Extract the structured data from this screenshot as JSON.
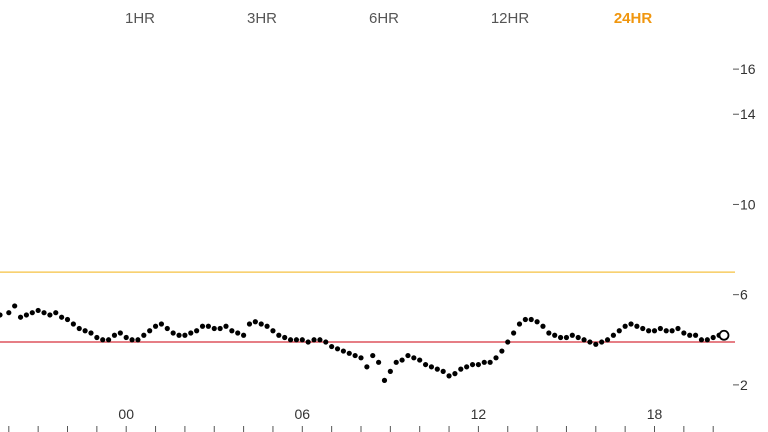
{
  "range_tabs": [
    {
      "label": "1HR",
      "active": false
    },
    {
      "label": "3HR",
      "active": false
    },
    {
      "label": "6HR",
      "active": false
    },
    {
      "label": "12HR",
      "active": false
    },
    {
      "label": "24HR",
      "active": true
    }
  ],
  "colors": {
    "active_tab": "#f0960e",
    "upper_threshold": "#f5c242",
    "lower_threshold": "#d8323c",
    "points": "#000000"
  },
  "chart_data": {
    "type": "scatter",
    "title": "",
    "xlabel": "",
    "ylabel": "",
    "x_unit": "hour",
    "xlim": [
      -4.3,
      20.3
    ],
    "ylim": [
      0,
      18
    ],
    "x_ticks": [
      {
        "value": 0,
        "label": "00"
      },
      {
        "value": 6,
        "label": "06"
      },
      {
        "value": 12,
        "label": "12"
      },
      {
        "value": 18,
        "label": "18"
      }
    ],
    "y_ticks": [
      2,
      6,
      10,
      14,
      16
    ],
    "y_axis_side": "right",
    "thresholds": [
      {
        "name": "upper",
        "value": 7.0,
        "color": "#f5c242"
      },
      {
        "name": "lower",
        "value": 3.9,
        "color": "#d8323c"
      }
    ],
    "series": [
      {
        "points": [
          [
            -4.3,
            5.1
          ],
          [
            -4.0,
            5.2
          ],
          [
            -3.8,
            5.5
          ],
          [
            -3.6,
            5.0
          ],
          [
            -3.4,
            5.1
          ],
          [
            -3.2,
            5.2
          ],
          [
            -3.0,
            5.3
          ],
          [
            -2.8,
            5.2
          ],
          [
            -2.6,
            5.1
          ],
          [
            -2.4,
            5.2
          ],
          [
            -2.2,
            5.0
          ],
          [
            -2.0,
            4.9
          ],
          [
            -1.8,
            4.7
          ],
          [
            -1.6,
            4.5
          ],
          [
            -1.4,
            4.4
          ],
          [
            -1.2,
            4.3
          ],
          [
            -1.0,
            4.1
          ],
          [
            -0.8,
            4.0
          ],
          [
            -0.6,
            4.0
          ],
          [
            -0.4,
            4.2
          ],
          [
            -0.2,
            4.3
          ],
          [
            0.0,
            4.1
          ],
          [
            0.2,
            4.0
          ],
          [
            0.4,
            4.0
          ],
          [
            0.6,
            4.2
          ],
          [
            0.8,
            4.4
          ],
          [
            1.0,
            4.6
          ],
          [
            1.2,
            4.7
          ],
          [
            1.4,
            4.5
          ],
          [
            1.6,
            4.3
          ],
          [
            1.8,
            4.2
          ],
          [
            2.0,
            4.2
          ],
          [
            2.2,
            4.3
          ],
          [
            2.4,
            4.4
          ],
          [
            2.6,
            4.6
          ],
          [
            2.8,
            4.6
          ],
          [
            3.0,
            4.5
          ],
          [
            3.2,
            4.5
          ],
          [
            3.4,
            4.6
          ],
          [
            3.6,
            4.4
          ],
          [
            3.8,
            4.3
          ],
          [
            4.0,
            4.2
          ],
          [
            4.2,
            4.7
          ],
          [
            4.4,
            4.8
          ],
          [
            4.6,
            4.7
          ],
          [
            4.8,
            4.6
          ],
          [
            5.0,
            4.4
          ],
          [
            5.2,
            4.2
          ],
          [
            5.4,
            4.1
          ],
          [
            5.6,
            4.0
          ],
          [
            5.8,
            4.0
          ],
          [
            6.0,
            4.0
          ],
          [
            6.2,
            3.9
          ],
          [
            6.4,
            4.0
          ],
          [
            6.6,
            4.0
          ],
          [
            6.8,
            3.9
          ],
          [
            7.0,
            3.7
          ],
          [
            7.2,
            3.6
          ],
          [
            7.4,
            3.5
          ],
          [
            7.6,
            3.4
          ],
          [
            7.8,
            3.3
          ],
          [
            8.0,
            3.2
          ],
          [
            8.2,
            2.8
          ],
          [
            8.4,
            3.3
          ],
          [
            8.6,
            3.0
          ],
          [
            8.8,
            2.2
          ],
          [
            9.0,
            2.6
          ],
          [
            9.2,
            3.0
          ],
          [
            9.4,
            3.1
          ],
          [
            9.6,
            3.3
          ],
          [
            9.8,
            3.2
          ],
          [
            10.0,
            3.1
          ],
          [
            10.2,
            2.9
          ],
          [
            10.4,
            2.8
          ],
          [
            10.6,
            2.7
          ],
          [
            10.8,
            2.6
          ],
          [
            11.0,
            2.4
          ],
          [
            11.2,
            2.5
          ],
          [
            11.4,
            2.7
          ],
          [
            11.6,
            2.8
          ],
          [
            11.8,
            2.9
          ],
          [
            12.0,
            2.9
          ],
          [
            12.2,
            3.0
          ],
          [
            12.4,
            3.0
          ],
          [
            12.6,
            3.2
          ],
          [
            12.8,
            3.5
          ],
          [
            13.0,
            3.9
          ],
          [
            13.2,
            4.3
          ],
          [
            13.4,
            4.7
          ],
          [
            13.6,
            4.9
          ],
          [
            13.8,
            4.9
          ],
          [
            14.0,
            4.8
          ],
          [
            14.2,
            4.6
          ],
          [
            14.4,
            4.3
          ],
          [
            14.6,
            4.2
          ],
          [
            14.8,
            4.1
          ],
          [
            15.0,
            4.1
          ],
          [
            15.2,
            4.2
          ],
          [
            15.4,
            4.1
          ],
          [
            15.6,
            4.0
          ],
          [
            15.8,
            3.9
          ],
          [
            16.0,
            3.8
          ],
          [
            16.2,
            3.9
          ],
          [
            16.4,
            4.0
          ],
          [
            16.6,
            4.2
          ],
          [
            16.8,
            4.4
          ],
          [
            17.0,
            4.6
          ],
          [
            17.2,
            4.7
          ],
          [
            17.4,
            4.6
          ],
          [
            17.6,
            4.5
          ],
          [
            17.8,
            4.4
          ],
          [
            18.0,
            4.4
          ],
          [
            18.2,
            4.5
          ],
          [
            18.4,
            4.4
          ],
          [
            18.6,
            4.4
          ],
          [
            18.8,
            4.5
          ],
          [
            19.0,
            4.3
          ],
          [
            19.2,
            4.2
          ],
          [
            19.4,
            4.2
          ],
          [
            19.6,
            4.0
          ],
          [
            19.8,
            4.0
          ],
          [
            20.0,
            4.1
          ],
          [
            20.2,
            4.2
          ]
        ],
        "latest": [
          20.3,
          4.2
        ]
      }
    ]
  }
}
